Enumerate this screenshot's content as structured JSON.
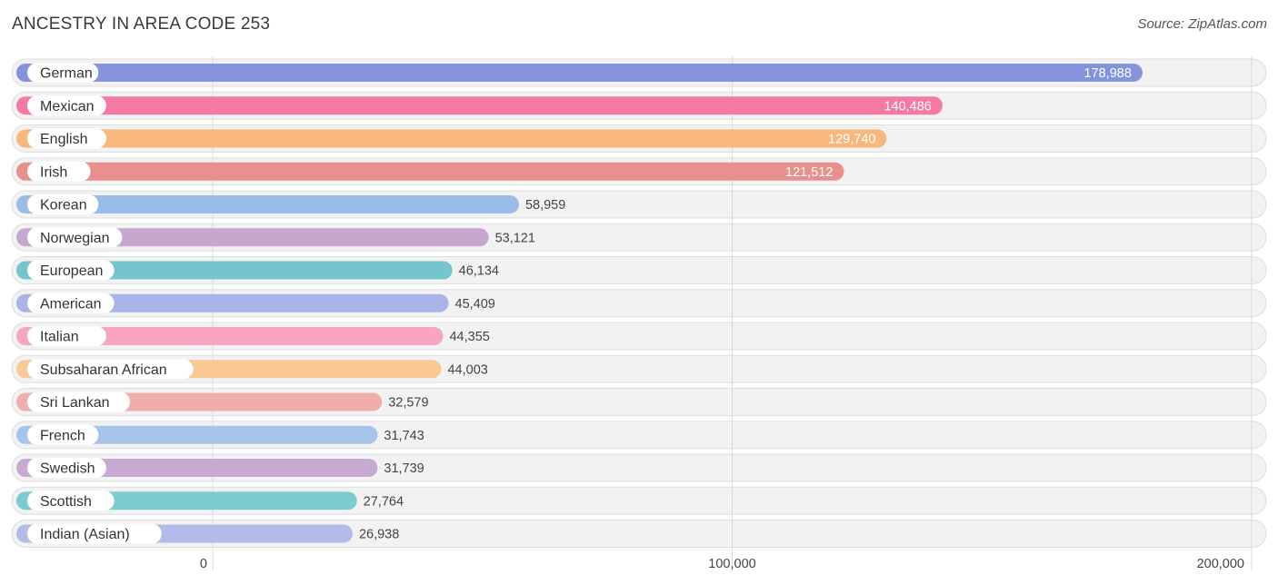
{
  "title": "ANCESTRY IN AREA CODE 253",
  "source": "Source: ZipAtlas.com",
  "chart_data": {
    "type": "bar",
    "orientation": "horizontal",
    "title": "ANCESTRY IN AREA CODE 253",
    "xlabel": "",
    "ylabel": "",
    "xlim": [
      0,
      200000
    ],
    "ticks": [
      {
        "value": 0,
        "label": "0"
      },
      {
        "value": 100000,
        "label": "100,000"
      },
      {
        "value": 200000,
        "label": "200,000"
      }
    ],
    "categories": [
      "German",
      "Mexican",
      "English",
      "Irish",
      "Korean",
      "Norwegian",
      "European",
      "American",
      "Italian",
      "Subsaharan African",
      "Sri Lankan",
      "French",
      "Swedish",
      "Scottish",
      "Indian (Asian)"
    ],
    "values": [
      178988,
      140486,
      129740,
      121512,
      58959,
      53121,
      46134,
      45409,
      44355,
      44003,
      32579,
      31743,
      31739,
      27764,
      26938
    ],
    "value_labels": [
      "178,988",
      "140,486",
      "129,740",
      "121,512",
      "58,959",
      "53,121",
      "46,134",
      "45,409",
      "44,355",
      "44,003",
      "32,579",
      "31,743",
      "31,739",
      "27,764",
      "26,938"
    ],
    "colors": [
      "#8593dd",
      "#f47aa1",
      "#f8b77c",
      "#e8908d",
      "#9bbbe8",
      "#c6a8cf",
      "#74c5cc",
      "#aab4e8",
      "#f7a5c0",
      "#f9c893",
      "#efaeab",
      "#a7c5ea",
      "#c7aad1",
      "#7ccbd0",
      "#b3bbea"
    ]
  }
}
